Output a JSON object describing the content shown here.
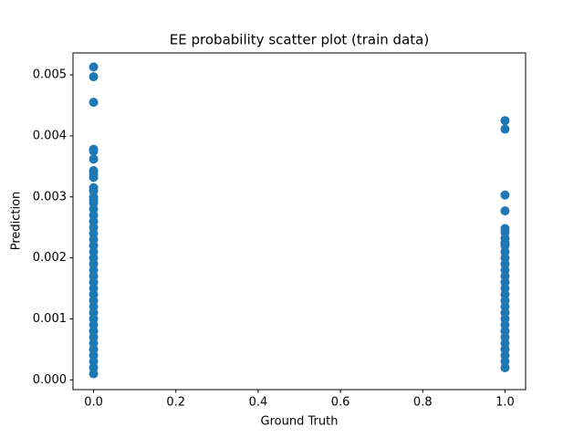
{
  "chart_data": {
    "type": "scatter",
    "title": "EE probability scatter plot (train data)",
    "x_label": "Ground Truth",
    "y_label": "Prediction",
    "color": "#1f77b4",
    "x": [
      0,
      0,
      0,
      0,
      0,
      0,
      0,
      0,
      0,
      0,
      0,
      0,
      0,
      0,
      0,
      0,
      0,
      0,
      0,
      0,
      0,
      0,
      0,
      0,
      0,
      0,
      0,
      0,
      0,
      0,
      0,
      0,
      0,
      0,
      0,
      0,
      0,
      0,
      0,
      0,
      0,
      0,
      1,
      1,
      1,
      1,
      1,
      1,
      1,
      1,
      1,
      1,
      1,
      1,
      1,
      1,
      1,
      1,
      1,
      1,
      1,
      1,
      1,
      1,
      1,
      1,
      1,
      1,
      1,
      1,
      1
    ],
    "values": [
      0.00513,
      0.00497,
      0.00455,
      0.00378,
      0.00375,
      0.00362,
      0.00343,
      0.00338,
      0.00332,
      0.00315,
      0.0031,
      0.003,
      0.00295,
      0.0029,
      0.0028,
      0.0027,
      0.0026,
      0.0025,
      0.0024,
      0.0023,
      0.0022,
      0.0021,
      0.002,
      0.0019,
      0.0018,
      0.0017,
      0.0016,
      0.0015,
      0.0014,
      0.0013,
      0.0012,
      0.0011,
      0.001,
      0.0009,
      0.0008,
      0.0007,
      0.0006,
      0.0005,
      0.0004,
      0.0003,
      0.0002,
      0.0001,
      0.00425,
      0.00411,
      0.00303,
      0.00277,
      0.00248,
      0.00242,
      0.00232,
      0.00225,
      0.0022,
      0.0021,
      0.002,
      0.0019,
      0.0018,
      0.0017,
      0.0016,
      0.0015,
      0.0014,
      0.0013,
      0.0012,
      0.0011,
      0.001,
      0.0009,
      0.0008,
      0.0007,
      0.0006,
      0.0005,
      0.0004,
      0.0003,
      0.0002
    ],
    "xlim": [
      -0.05,
      1.05
    ],
    "xticks": [
      {
        "value": 0,
        "label": "0.0"
      },
      {
        "value": 0.2,
        "label": "0.2"
      },
      {
        "value": 0.4,
        "label": "0.4"
      },
      {
        "value": 0.6,
        "label": "0.6"
      },
      {
        "value": 0.8,
        "label": "0.8"
      },
      {
        "value": 1,
        "label": "1.0"
      }
    ],
    "ylim": [
      -0.00016,
      0.00536
    ],
    "yticks": [
      {
        "value": 0,
        "label": "0.000"
      },
      {
        "value": 0.001,
        "label": "0.001"
      },
      {
        "value": 0.002,
        "label": "0.002"
      },
      {
        "value": 0.003,
        "label": "0.003"
      },
      {
        "value": 0.004,
        "label": "0.004"
      },
      {
        "value": 0.005,
        "label": "0.005"
      }
    ],
    "grid": false
  }
}
